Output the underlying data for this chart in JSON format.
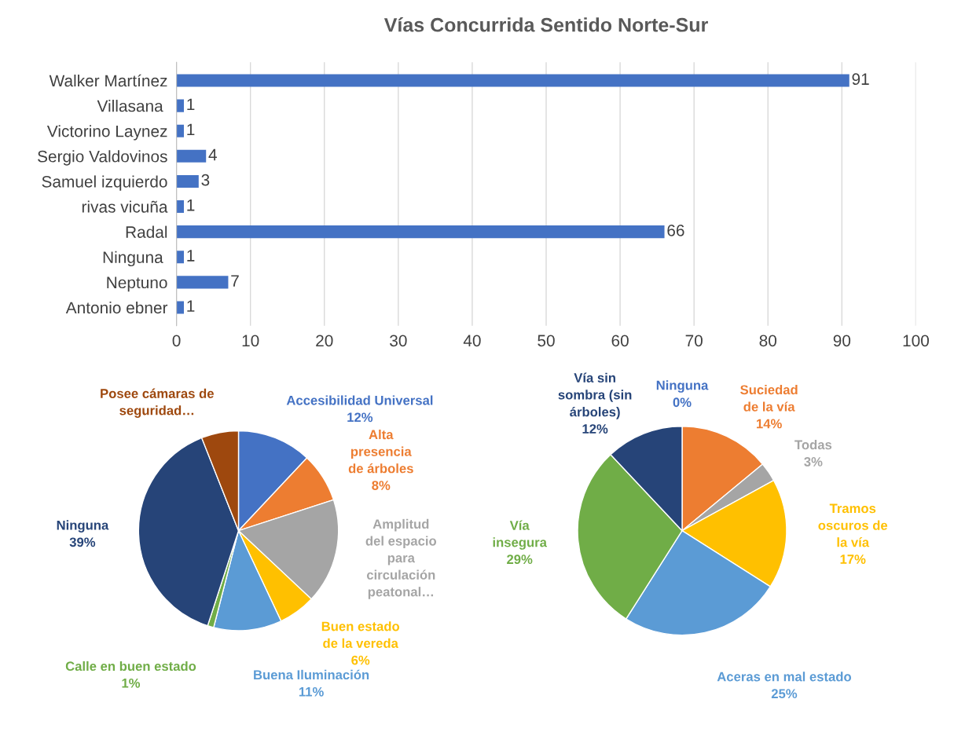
{
  "chart_data": [
    {
      "type": "bar",
      "title": "Vías Concurrida Sentido Norte-Sur",
      "orientation": "horizontal",
      "categories": [
        "Walker Martínez",
        "Villasana ",
        "Victorino Laynez",
        "Sergio Valdovinos",
        "Samuel izquierdo",
        "rivas vicuña",
        "Radal",
        "Ninguna ",
        "Neptuno",
        "Antonio ebner"
      ],
      "values": [
        91,
        1,
        1,
        4,
        3,
        1,
        66,
        1,
        7,
        1
      ],
      "color": "#4472c4",
      "xlim": [
        0,
        100
      ],
      "xticks": [
        0,
        10,
        20,
        30,
        40,
        50,
        60,
        70,
        80,
        90,
        100
      ],
      "grid": "x",
      "data_labels": true
    },
    {
      "type": "pie",
      "categories": [
        "Accesibilidad Universal",
        "Alta\npresencia\nde árboles",
        "Amplitud\ndel espacio\npara\ncirculación\npeatonal…",
        "Buen estado\nde la vereda",
        "Buena Iluminación",
        "Calle en buen estado",
        "Ninguna",
        "Posee cámaras de\nseguridad…"
      ],
      "values": [
        12,
        8,
        17,
        6,
        11,
        1,
        39,
        6
      ],
      "value_labels": [
        "12%",
        "8%",
        null,
        "6%",
        "11%",
        "1%",
        "39%",
        null
      ],
      "colors": [
        "#4472c4",
        "#ed7d31",
        "#a5a5a5",
        "#ffc000",
        "#5b9bd5",
        "#70ad47",
        "#264478",
        "#9e480e"
      ]
    },
    {
      "type": "pie",
      "categories": [
        "Ninguna",
        "Suciedad\nde la vía",
        "Todas",
        "Tramos\noscuros de\nla vía",
        "Aceras en mal estado",
        "Vía\ninsegura",
        "Vía sin\nsombra (sin\nárboles)"
      ],
      "values": [
        0,
        14,
        3,
        17,
        25,
        29,
        12
      ],
      "value_labels": [
        "0%",
        "14%",
        "3%",
        "17%",
        "25%",
        "29%",
        "12%"
      ],
      "colors": [
        "#4472c4",
        "#ed7d31",
        "#a5a5a5",
        "#ffc000",
        "#5b9bd5",
        "#70ad47",
        "#264478"
      ]
    }
  ]
}
